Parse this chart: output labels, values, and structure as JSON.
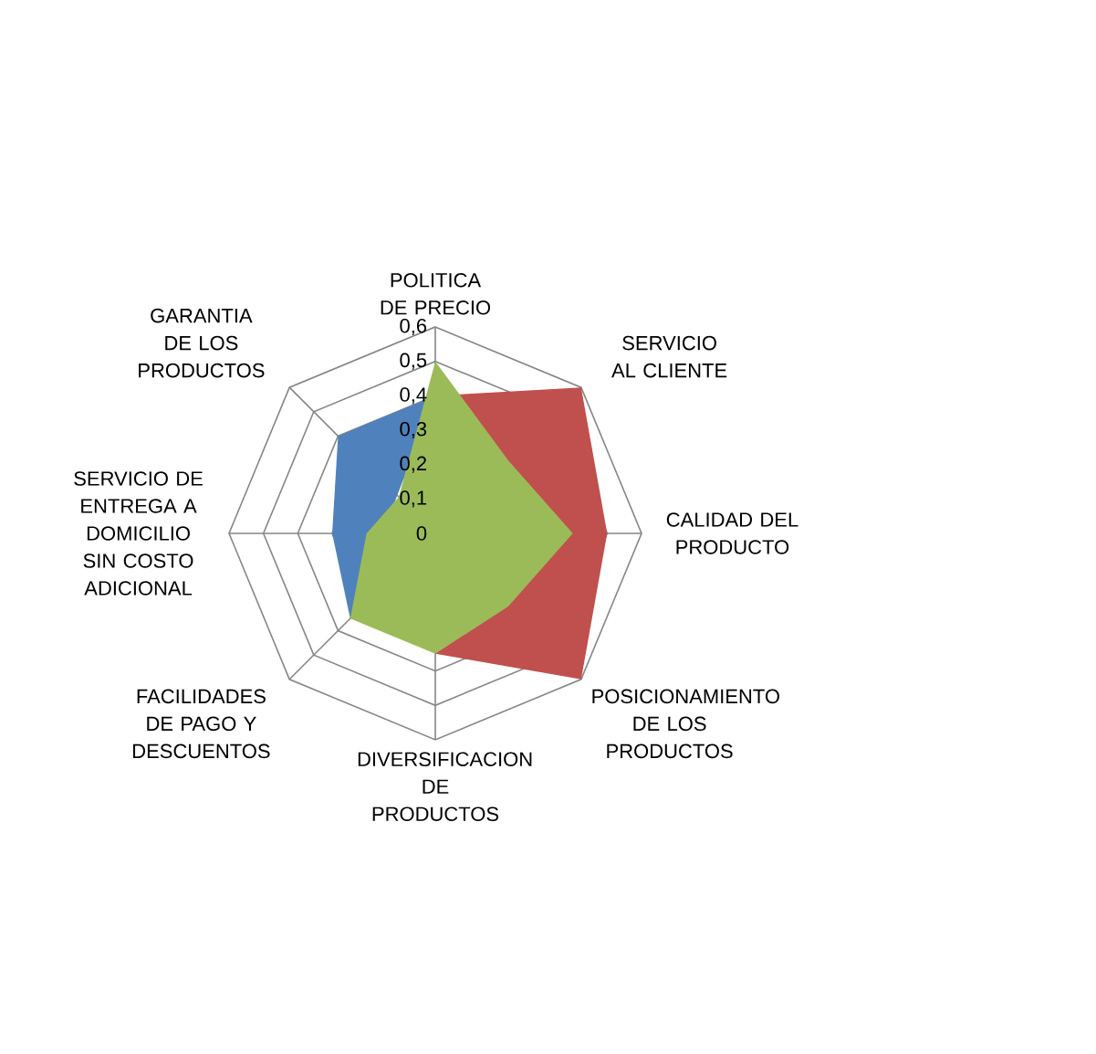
{
  "chart_data": {
    "type": "radar",
    "categories": [
      "POLITICA DE PRECIO",
      "SERVICIO AL CLIENTE",
      "CALIDAD DEL PRODUCTO",
      "POSICIONAMIENTO DE LOS PRODUCTOS",
      "DIVERSIFICACION DE PRODUCTOS",
      "FACILIDADES DE PAGO Y DESCUENTOS",
      "SERVICIO DE ENTREGA A DOMICILIO SIN COSTO ADICIONAL",
      "GARANTIA DE LOS PRODUCTOS"
    ],
    "series": [
      {
        "color": "#4f81bd",
        "values": [
          0.4,
          null,
          null,
          null,
          null,
          0.35,
          0.3,
          0.4
        ]
      },
      {
        "color": "#c0504d",
        "values": [
          0.4,
          0.6,
          0.5,
          0.6,
          0.35,
          null,
          null,
          null
        ]
      },
      {
        "color": "#9bbb59",
        "values": [
          0.5,
          0.3,
          0.4,
          0.3,
          0.35,
          0.35,
          0.2,
          0.15
        ]
      }
    ],
    "ylim": [
      0,
      0.6
    ],
    "yticks": [
      0,
      {
        "value": 0.1,
        "label": "0,1"
      },
      {
        "value": 0.2,
        "label": "0,2"
      },
      {
        "value": 0.3,
        "label": "0,3"
      },
      {
        "value": 0.4,
        "label": "0,4"
      },
      {
        "value": 0.5,
        "label": "0,5"
      },
      {
        "value": 0.6,
        "label": "0,6"
      }
    ],
    "grid": true
  }
}
